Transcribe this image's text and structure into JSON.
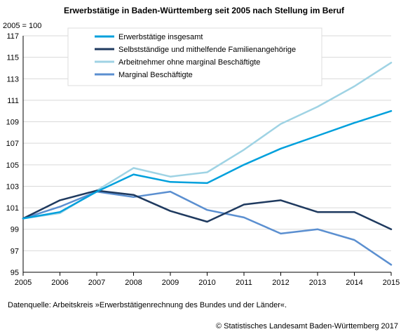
{
  "chart_data": {
    "type": "line",
    "title": "Erwerbstätige in Baden-Württemberg seit 2005 nach Stellung im Beruf",
    "ylabel": "2005 = 100",
    "xlabel": "",
    "ylim": [
      95,
      117
    ],
    "yticks": [
      "95",
      "97",
      "99",
      "101",
      "103",
      "105",
      "107",
      "109",
      "111",
      "113",
      "115",
      "117"
    ],
    "x": [
      "2005",
      "2006",
      "2007",
      "2008",
      "2009",
      "2010",
      "2011",
      "2012",
      "2013",
      "2014",
      "2015"
    ],
    "grid": true,
    "legend_position": "top-center",
    "series": [
      {
        "name": "Erwerbstätige insgesamt",
        "color": "#00a0dc",
        "width": 2.5,
        "values": [
          100,
          100.6,
          102.5,
          104.1,
          103.4,
          103.3,
          105.0,
          106.5,
          107.7,
          108.9,
          110.0
        ]
      },
      {
        "name": "Selbstständige und mithelfende Familienangehörige",
        "color": "#1f3a5f",
        "width": 2.5,
        "values": [
          100,
          101.7,
          102.6,
          102.2,
          100.7,
          99.7,
          101.3,
          101.7,
          100.6,
          100.6,
          99.0
        ]
      },
      {
        "name": "Arbeitnehmer ohne marginal Beschäftigte",
        "color": "#9fd3e4",
        "width": 2.5,
        "values": [
          100,
          100.5,
          102.6,
          104.7,
          103.9,
          104.3,
          106.4,
          108.8,
          110.4,
          112.3,
          114.5
        ]
      },
      {
        "name": "Marginal Beschäftigte",
        "color": "#5b8fd0",
        "width": 2.5,
        "values": [
          100,
          101.1,
          102.5,
          102.0,
          102.5,
          100.8,
          100.1,
          98.6,
          99.0,
          98.0,
          95.7
        ]
      }
    ]
  },
  "source_note": "Datenquelle: Arbeitskreis »Erwerbstätigenrechnung des Bundes und der Länder«.",
  "copyright": "© Statistisches Landesamt Baden-Württemberg 2017"
}
